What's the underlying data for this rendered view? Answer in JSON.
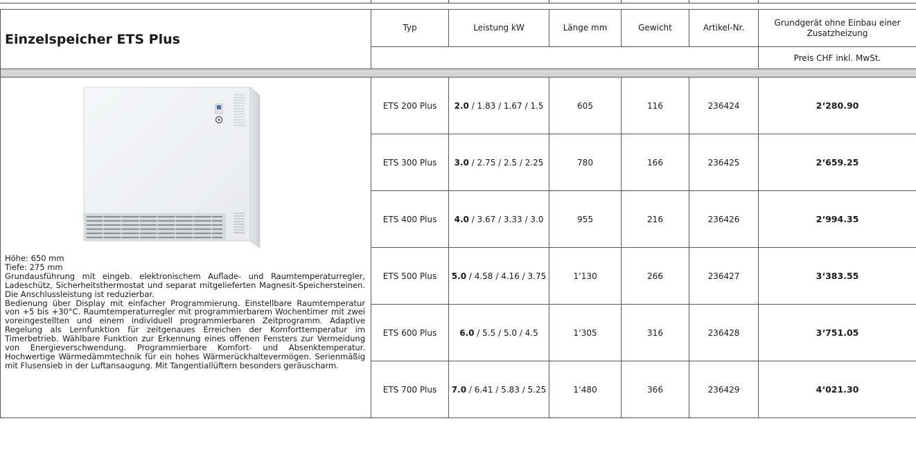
{
  "header": {
    "title": "Einzelspeicher ETS Plus",
    "columns": [
      "Typ",
      "Leistung kW",
      "Länge mm",
      "Gewicht",
      "Artikel-Nr.",
      "Grundgerät ohne Einbau einer Zusatzheizung"
    ],
    "price_label": "Preis CHF inkl. MwSt."
  },
  "product": {
    "image": "storage-heater-illustration",
    "height_label": "Höhe: 650 mm",
    "depth_label": "Tiefe:  275 mm",
    "description_1": "Grundausführung mit eingeb. elektronischem Auflade- und Raumtemperaturregler, Ladeschütz, Sicherheitsthermostat und separat mitgelieferten Magnesit-Speichersteinen. Die Anschlussleistung ist reduzierbar.",
    "description_2": "Bedienung über Display mit einfacher Programmierung. Einstellbare Raumtemperatur von +5 bis +30°C. Raumtemperaturregler mit programmierbarem Wochentimer mit zwei voreingestellten und einem individuell programmierbaren Zeitprogramm. Adaptive Regelung als Lernfunktion für zeitgenaues Erreichen der Komforttemperatur im Timerbetrieb. Wählbare Funktion zur Erkennung eines offenen Fensters zur Vermeidung von Energieverschwendung. Programmierbare Komfort- und Absenktemperatur. Hochwertige Wärmedämmtechnik für ein hohes Wärmerückhaltevermögen. Serienmäßig mit Flusensieb in der Luftansaugung. Mit Tangentiallüftern besonders geräuscharm."
  },
  "rows": [
    {
      "typ": "ETS 200 Plus",
      "power_main": "2.0",
      "power_rest": " / 1.83 / 1.67 / 1.5",
      "laenge": "605",
      "gewicht": "116",
      "artikel": "236424",
      "preis": "2‘280.90"
    },
    {
      "typ": "ETS 300 Plus",
      "power_main": "3.0",
      "power_rest": " / 2.75 / 2.5 / 2.25",
      "laenge": "780",
      "gewicht": "166",
      "artikel": "236425",
      "preis": "2‘659.25"
    },
    {
      "typ": "ETS 400 Plus",
      "power_main": "4.0",
      "power_rest": " / 3.67 / 3.33 / 3.0",
      "laenge": "955",
      "gewicht": "216",
      "artikel": "236426",
      "preis": "2‘994.35"
    },
    {
      "typ": "ETS 500 Plus",
      "power_main": "5.0",
      "power_rest": " / 4.58 / 4.16 / 3.75",
      "laenge": "1‘130",
      "gewicht": "266",
      "artikel": "236427",
      "preis": "3‘383.55"
    },
    {
      "typ": "ETS 600 Plus",
      "power_main": "6.0",
      "power_rest": " / 5.5 / 5.0 / 4.5",
      "laenge": "1‘305",
      "gewicht": "316",
      "artikel": "236428",
      "preis": "3‘751.05"
    },
    {
      "typ": "ETS 700 Plus",
      "power_main": "7.0",
      "power_rest": " / 6.41 / 5.83 / 5.25",
      "laenge": "1‘480",
      "gewicht": "366",
      "artikel": "236429",
      "preis": "4‘021.30"
    }
  ]
}
